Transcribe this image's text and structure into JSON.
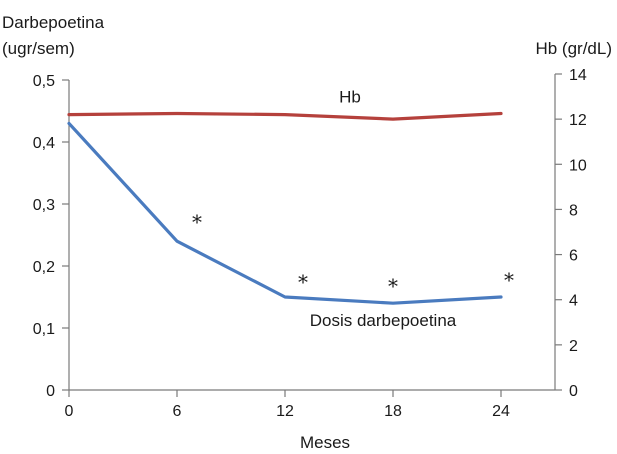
{
  "chart_data": {
    "type": "line",
    "x": [
      0,
      6,
      12,
      18,
      24
    ],
    "xlabel": "Meses",
    "xlim": [
      0,
      27
    ],
    "xticks": [
      "0",
      "6",
      "12",
      "18",
      "24"
    ],
    "y_left": {
      "label_line1": "Darbepoetina",
      "label_line2": "(ugr/sem)",
      "ylim": [
        0,
        0.5
      ],
      "ticks": [
        "0",
        "0,1",
        "0,2",
        "0,3",
        "0,4",
        "0,5"
      ]
    },
    "y_right": {
      "label": "Hb (gr/dL)",
      "ylim": [
        0,
        14
      ],
      "ticks": [
        "0",
        "2",
        "4",
        "6",
        "8",
        "10",
        "12",
        "14"
      ]
    },
    "series": [
      {
        "name": "Hb",
        "axis": "right",
        "color": "#b5413c",
        "values": [
          12.2,
          12.25,
          12.2,
          12.0,
          12.25
        ]
      },
      {
        "name": "Dosis darbepoetina",
        "axis": "left",
        "color": "#4a7bbf",
        "values": [
          0.43,
          0.24,
          0.15,
          0.14,
          0.15
        ]
      }
    ],
    "annotations": [
      {
        "text": "*",
        "x": 6
      },
      {
        "text": "*",
        "x": 12
      },
      {
        "text": "*",
        "x": 18
      },
      {
        "text": "*",
        "x": 24
      }
    ],
    "grid": false
  }
}
